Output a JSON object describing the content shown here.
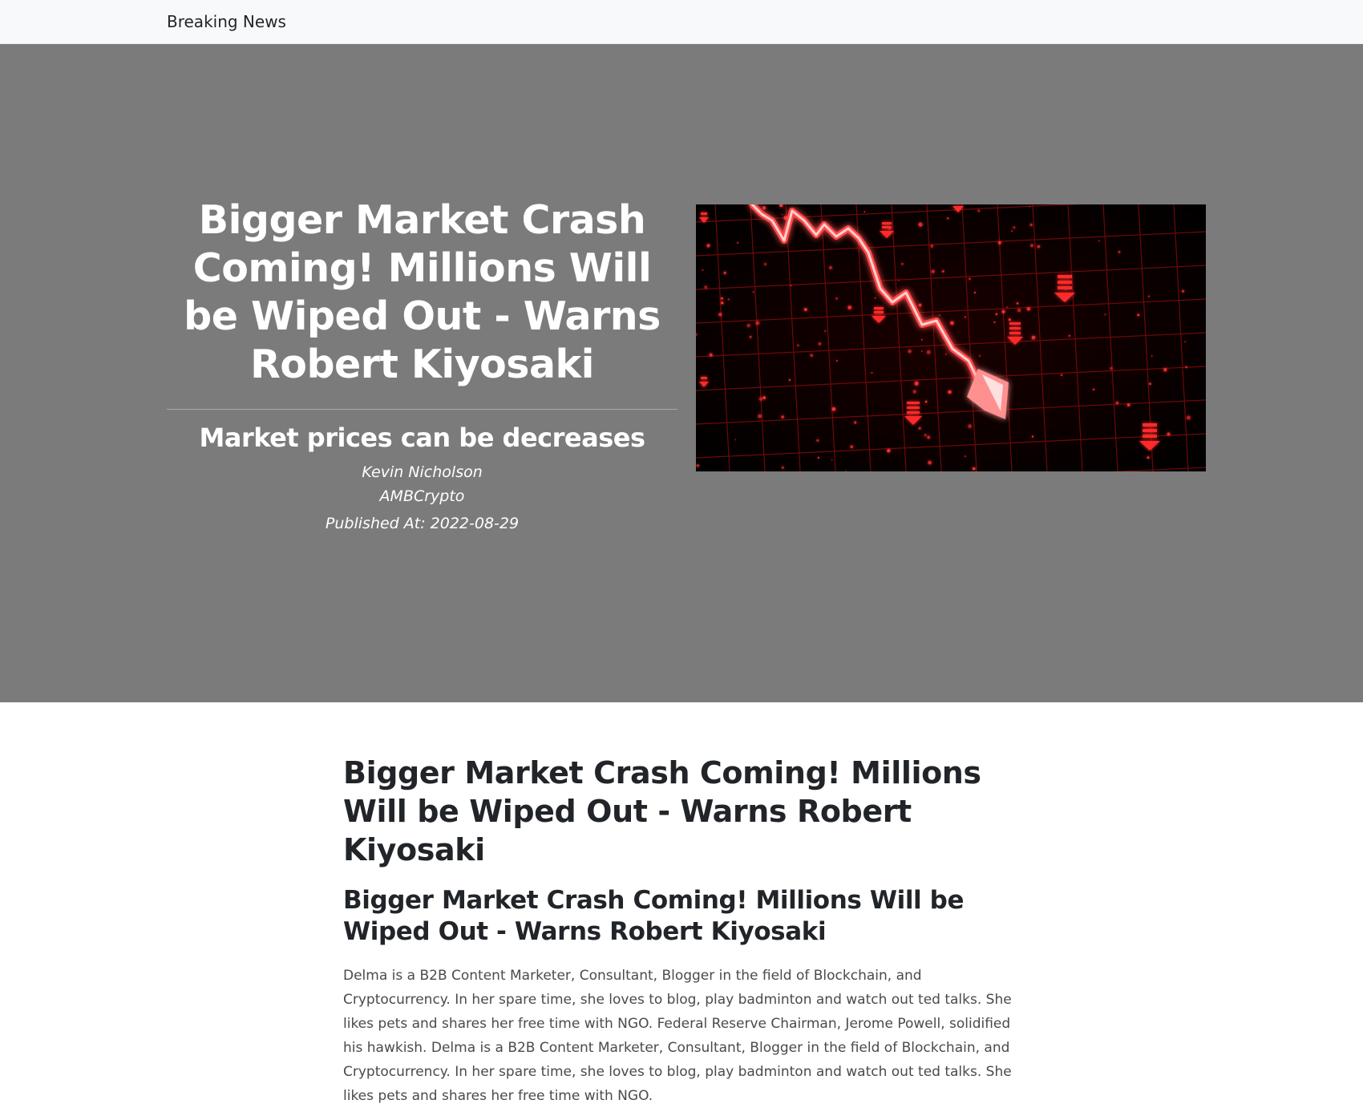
{
  "navbar": {
    "brand": "Breaking News"
  },
  "hero": {
    "title": "Bigger Market Crash Coming! Millions Will be Wiped Out - Warns Robert Kiyosaki",
    "subtitle": "Market prices can be decreases",
    "author": "Kevin Nicholson",
    "source": "AMBCrypto",
    "published": "Published At: 2022-08-29",
    "image_icon": "market-crash-chart-image"
  },
  "article": {
    "title": "Bigger Market Crash Coming! Millions Will be Wiped Out - Warns Robert Kiyosaki",
    "subtitle": "Bigger Market Crash Coming! Millions Will be Wiped Out - Warns Robert Kiyosaki",
    "body": "Delma is a B2B Content Marketer, Consultant, Blogger in the field of Blockchain, and Cryptocurrency. In her spare time, she loves to blog, play badminton and watch out ted talks. She likes pets and shares her free time with NGO. Federal Reserve Chairman, Jerome Powell, solidified his hawkish. Delma is a B2B Content Marketer, Consultant, Blogger in the field of Blockchain, and Cryptocurrency. In her spare time, she loves to blog, play badminton and watch out ted talks. She likes pets and shares her free time with NGO."
  },
  "colors": {
    "hero_background": "#7a7b7a",
    "navbar_background": "#f8f9fa",
    "chart_red": "#ff2a2a"
  }
}
